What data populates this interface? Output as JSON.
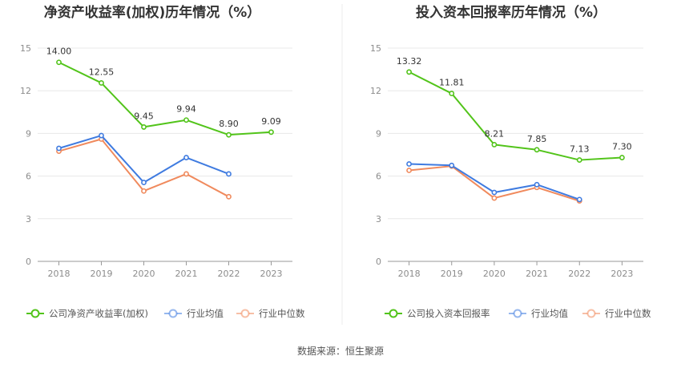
{
  "colors": {
    "company": "#52c41a",
    "industry_avg": "#3f7be0",
    "industry_median": "#f08a5d",
    "grid": "#e8e8e8",
    "axis": "#999999",
    "divider": "#eeeeee"
  },
  "source_text": "数据来源：恒生聚源",
  "chart_data": [
    {
      "type": "line",
      "title": "净资产收益率(加权)历年情况（%）",
      "categories": [
        "2018",
        "2019",
        "2020",
        "2021",
        "2022",
        "2023"
      ],
      "ylim": [
        0,
        15
      ],
      "yticks": [
        "0",
        "3",
        "6",
        "9",
        "12",
        "15"
      ],
      "grid": true,
      "legend_position": "bottom",
      "series": [
        {
          "name": "公司净资产收益率(加权)",
          "role": "company",
          "values": [
            14.0,
            12.55,
            9.45,
            9.94,
            8.9,
            9.09
          ],
          "labels": [
            "14.00",
            "12.55",
            "9.45",
            "9.94",
            "8.90",
            "9.09"
          ]
        },
        {
          "name": "行业均值",
          "role": "industry_avg",
          "values": [
            7.95,
            8.85,
            5.55,
            7.3,
            6.15,
            null
          ]
        },
        {
          "name": "行业中位数",
          "role": "industry_median",
          "values": [
            7.75,
            8.6,
            4.95,
            6.15,
            4.55,
            null
          ]
        }
      ]
    },
    {
      "type": "line",
      "title": "投入资本回报率历年情况（%）",
      "categories": [
        "2018",
        "2019",
        "2020",
        "2021",
        "2022",
        "2023"
      ],
      "ylim": [
        0,
        15
      ],
      "yticks": [
        "0",
        "3",
        "6",
        "9",
        "12",
        "15"
      ],
      "grid": true,
      "legend_position": "bottom",
      "series": [
        {
          "name": "公司投入资本回报率",
          "role": "company",
          "values": [
            13.32,
            11.81,
            8.21,
            7.85,
            7.13,
            7.3
          ],
          "labels": [
            "13.32",
            "11.81",
            "8.21",
            "7.85",
            "7.13",
            "7.30"
          ]
        },
        {
          "name": "行业均值",
          "role": "industry_avg",
          "values": [
            6.85,
            6.75,
            4.85,
            5.4,
            4.35,
            null
          ]
        },
        {
          "name": "行业中位数",
          "role": "industry_median",
          "values": [
            6.4,
            6.7,
            4.45,
            5.2,
            4.25,
            null
          ]
        }
      ]
    }
  ]
}
